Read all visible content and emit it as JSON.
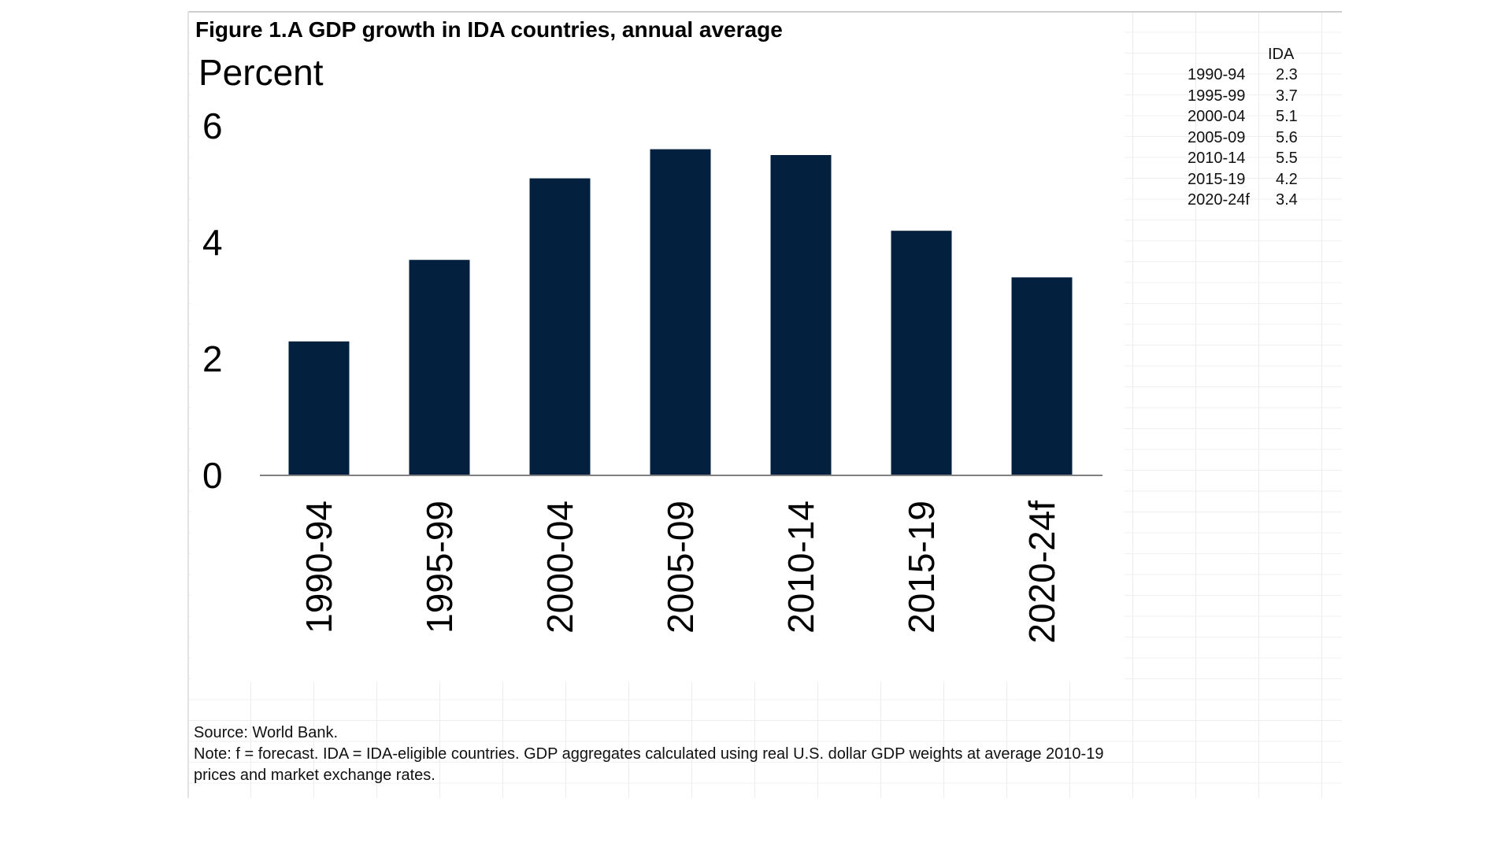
{
  "chart_data": {
    "type": "bar",
    "title": "Figure 1.A GDP growth in IDA countries, annual average",
    "ylabel": "Percent",
    "categories": [
      "1990-94",
      "1995-99",
      "2000-04",
      "2005-09",
      "2010-14",
      "2015-19",
      "2020-24f"
    ],
    "series": [
      {
        "name": "IDA",
        "values": [
          2.3,
          3.7,
          5.1,
          5.6,
          5.5,
          4.2,
          3.4
        ]
      }
    ],
    "yticks": [
      "0",
      "2",
      "4",
      "6"
    ],
    "ylim": [
      0,
      6.5
    ],
    "grid": false,
    "bar_color": "#03203f",
    "axis_color": "#808080"
  },
  "source": "Source: World Bank.",
  "note": "Note: f = forecast. IDA = IDA-eligible countries. GDP aggregates calculated using real U.S. dollar GDP weights at average 2010-19 prices and market exchange rates.",
  "table": {
    "header": "IDA",
    "rows": [
      {
        "category": "1990-94",
        "value": "2.3"
      },
      {
        "category": "1995-99",
        "value": "3.7"
      },
      {
        "category": "2000-04",
        "value": "5.1"
      },
      {
        "category": "2005-09",
        "value": "5.6"
      },
      {
        "category": "2010-14",
        "value": "5.5"
      },
      {
        "category": "2015-19",
        "value": "4.2"
      },
      {
        "category": "2020-24f",
        "value": "3.4"
      }
    ]
  }
}
